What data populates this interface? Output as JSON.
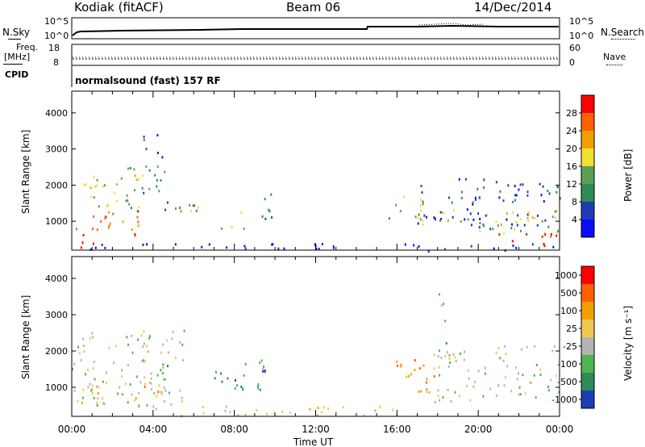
{
  "header": {
    "radar": "Kodiak (fitACF)",
    "beam": "Beam 06",
    "date": "14/Dec/2014"
  },
  "strip": {
    "nsky_label": "N.Sky",
    "nsearch_label": "N.Search",
    "freq_label": "Freq.",
    "freq_unit": "[MHz]",
    "nave_label": "Nave",
    "cpid_label": "CPID",
    "cpid_value": "normalsound (fast) 157 RF",
    "nsky_ticks": [
      "10^5",
      "10^0"
    ],
    "nsearch_ticks": [
      "10^5",
      "10^0"
    ],
    "freq_ticks": [
      "18",
      "8"
    ],
    "nave_ticks": [
      "60",
      "0"
    ]
  },
  "chart_data": [
    {
      "type": "heatmap",
      "name": "power-panel",
      "ylabel": "Slant Range [km]",
      "xlabel": "Time UT",
      "xlim": [
        0,
        24
      ],
      "ylim": [
        200,
        4600
      ],
      "yticks": [
        "4000",
        "3000",
        "2000",
        "1000"
      ],
      "xticks": [
        "00:00",
        "04:00",
        "08:00",
        "12:00",
        "16:00",
        "20:00",
        "00:00"
      ],
      "colorbar": {
        "label": "Power [dB]",
        "ticks": [
          "28",
          "24",
          "20",
          "16",
          "12",
          "8",
          "4"
        ],
        "colors": [
          "#0a0aff",
          "#1e3cb4",
          "#2e8b57",
          "#5aa05a",
          "#f0e030",
          "#f0a000",
          "#ff6000",
          "#ff0000"
        ]
      },
      "regions": [
        {
          "t0": 0.0,
          "t1": 1.5,
          "r0": 250,
          "r1": 500,
          "level": 7
        },
        {
          "t0": 0.0,
          "t1": 3.5,
          "r0": 600,
          "r1": 1200,
          "level": 6
        },
        {
          "t0": 0.5,
          "t1": 3.5,
          "r0": 1200,
          "r1": 2300,
          "level": 4
        },
        {
          "t0": 2.5,
          "t1": 4.8,
          "r0": 1300,
          "r1": 2600,
          "level": 2
        },
        {
          "t0": 3.5,
          "t1": 4.5,
          "r0": 2800,
          "r1": 3500,
          "level": 1
        },
        {
          "t0": 5.0,
          "t1": 6.5,
          "r0": 900,
          "r1": 1600,
          "level": 3
        },
        {
          "t0": 7.0,
          "t1": 8.5,
          "r0": 800,
          "r1": 1300,
          "level": 4
        },
        {
          "t0": 9.0,
          "t1": 10.0,
          "r0": 1000,
          "r1": 1800,
          "level": 2
        },
        {
          "t0": 15.5,
          "t1": 17.5,
          "r0": 900,
          "r1": 1800,
          "level": 3
        },
        {
          "t0": 17.0,
          "t1": 24.0,
          "r0": 800,
          "r1": 2200,
          "level": 1
        },
        {
          "t0": 18.0,
          "t1": 24.0,
          "r0": 600,
          "r1": 1400,
          "level": 4
        },
        {
          "t0": 21.0,
          "t1": 24.0,
          "r0": 300,
          "r1": 800,
          "level": 7
        },
        {
          "t0": 0.0,
          "t1": 24.0,
          "r0": 200,
          "r1": 400,
          "level": 0
        }
      ]
    },
    {
      "type": "heatmap",
      "name": "velocity-panel",
      "ylabel": "Slant Range [km]",
      "xlabel": "Time UT",
      "xlim": [
        0,
        24
      ],
      "ylim": [
        200,
        4600
      ],
      "yticks": [
        "4000",
        "3000",
        "2000",
        "1000"
      ],
      "xticks": [
        "00:00",
        "04:00",
        "08:00",
        "12:00",
        "16:00",
        "20:00",
        "00:00"
      ],
      "colorbar": {
        "label": "Velocity [m s⁻¹]",
        "ticks": [
          "1000",
          "500",
          "100",
          "25",
          "-25",
          "-100",
          "-500",
          "-1000"
        ],
        "colors": [
          "#1e3cb4",
          "#2e8b57",
          "#50b450",
          "#b4b4b4",
          "#f0c850",
          "#f0a000",
          "#ff6000",
          "#ff0000"
        ]
      },
      "regions": [
        {
          "t0": 0.0,
          "t1": 5.5,
          "r0": 500,
          "r1": 2600,
          "level": 3
        },
        {
          "t0": 0.0,
          "t1": 1.5,
          "r0": 500,
          "r1": 1100,
          "level": 4
        },
        {
          "t0": 3.0,
          "t1": 4.5,
          "r0": 600,
          "r1": 1200,
          "level": 5
        },
        {
          "t0": 3.8,
          "t1": 4.8,
          "r0": 800,
          "r1": 1800,
          "level": 2
        },
        {
          "t0": 7.0,
          "t1": 9.5,
          "r0": 900,
          "r1": 1600,
          "level": 1
        },
        {
          "t0": 8.0,
          "t1": 9.5,
          "r0": 1000,
          "r1": 1800,
          "level": 2
        },
        {
          "t0": 15.5,
          "t1": 18.0,
          "r0": 900,
          "r1": 1800,
          "level": 5
        },
        {
          "t0": 17.5,
          "t1": 24.0,
          "r0": 600,
          "r1": 2200,
          "level": 3
        },
        {
          "t0": 18.0,
          "t1": 18.6,
          "r0": 2000,
          "r1": 3600,
          "level": 2
        },
        {
          "t0": 4.0,
          "t1": 16.0,
          "r0": 200,
          "r1": 500,
          "level": 4
        }
      ]
    }
  ]
}
